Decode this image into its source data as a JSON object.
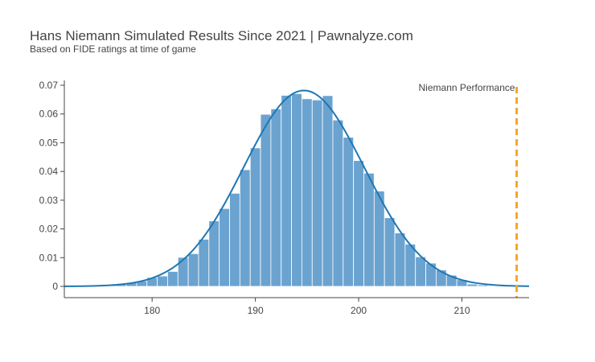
{
  "header": {
    "title": "Hans Niemann Simulated Results Since 2021 | Pawnalyze.com",
    "subtitle": "Based on FIDE ratings at time of game"
  },
  "colors": {
    "bar": "#6ba3d0",
    "curve": "#1f77b4",
    "marker": "#f5a623",
    "text": "#444444"
  },
  "chart_data": {
    "type": "bar",
    "xlim": [
      171.5,
      216.5
    ],
    "ylim": [
      0,
      0.072
    ],
    "x_ticks": [
      180,
      190,
      200,
      210
    ],
    "y_ticks": [
      {
        "value": 0,
        "label": "0"
      },
      {
        "value": 0.01,
        "label": "0.01"
      },
      {
        "value": 0.02,
        "label": "0.02"
      },
      {
        "value": 0.03,
        "label": "0.03"
      },
      {
        "value": 0.04,
        "label": "0.04"
      },
      {
        "value": 0.05,
        "label": "0.05"
      },
      {
        "value": 0.06,
        "label": "0.06"
      },
      {
        "value": 0.07,
        "label": "0.07"
      }
    ],
    "bin_width": 1,
    "bins": [
      {
        "x": 176,
        "y": 0.0006
      },
      {
        "x": 177,
        "y": 0.0009
      },
      {
        "x": 178,
        "y": 0.0013
      },
      {
        "x": 179,
        "y": 0.0019
      },
      {
        "x": 180,
        "y": 0.0031
      },
      {
        "x": 181,
        "y": 0.0036
      },
      {
        "x": 182,
        "y": 0.0052
      },
      {
        "x": 183,
        "y": 0.0101
      },
      {
        "x": 184,
        "y": 0.0114
      },
      {
        "x": 185,
        "y": 0.0164
      },
      {
        "x": 186,
        "y": 0.0228
      },
      {
        "x": 187,
        "y": 0.0271
      },
      {
        "x": 188,
        "y": 0.0324
      },
      {
        "x": 189,
        "y": 0.0406
      },
      {
        "x": 190,
        "y": 0.0482
      },
      {
        "x": 191,
        "y": 0.0599
      },
      {
        "x": 192,
        "y": 0.0618
      },
      {
        "x": 193,
        "y": 0.0665
      },
      {
        "x": 194,
        "y": 0.0671
      },
      {
        "x": 195,
        "y": 0.0653
      },
      {
        "x": 196,
        "y": 0.0649
      },
      {
        "x": 197,
        "y": 0.0664
      },
      {
        "x": 198,
        "y": 0.0579
      },
      {
        "x": 199,
        "y": 0.0519
      },
      {
        "x": 200,
        "y": 0.0438
      },
      {
        "x": 201,
        "y": 0.0394
      },
      {
        "x": 202,
        "y": 0.0332
      },
      {
        "x": 203,
        "y": 0.0239
      },
      {
        "x": 204,
        "y": 0.0186
      },
      {
        "x": 205,
        "y": 0.0147
      },
      {
        "x": 206,
        "y": 0.0103
      },
      {
        "x": 207,
        "y": 0.0081
      },
      {
        "x": 208,
        "y": 0.0057
      },
      {
        "x": 209,
        "y": 0.0039
      },
      {
        "x": 210,
        "y": 0.0023
      },
      {
        "x": 211,
        "y": 0.0008
      },
      {
        "x": 212,
        "y": 0.0005
      },
      {
        "x": 213,
        "y": 0.0002
      }
    ],
    "curve": {
      "mean": 194.7,
      "sd": 5.85
    },
    "performance_line": {
      "x": 215.3,
      "label": "Niemann Performance"
    }
  }
}
